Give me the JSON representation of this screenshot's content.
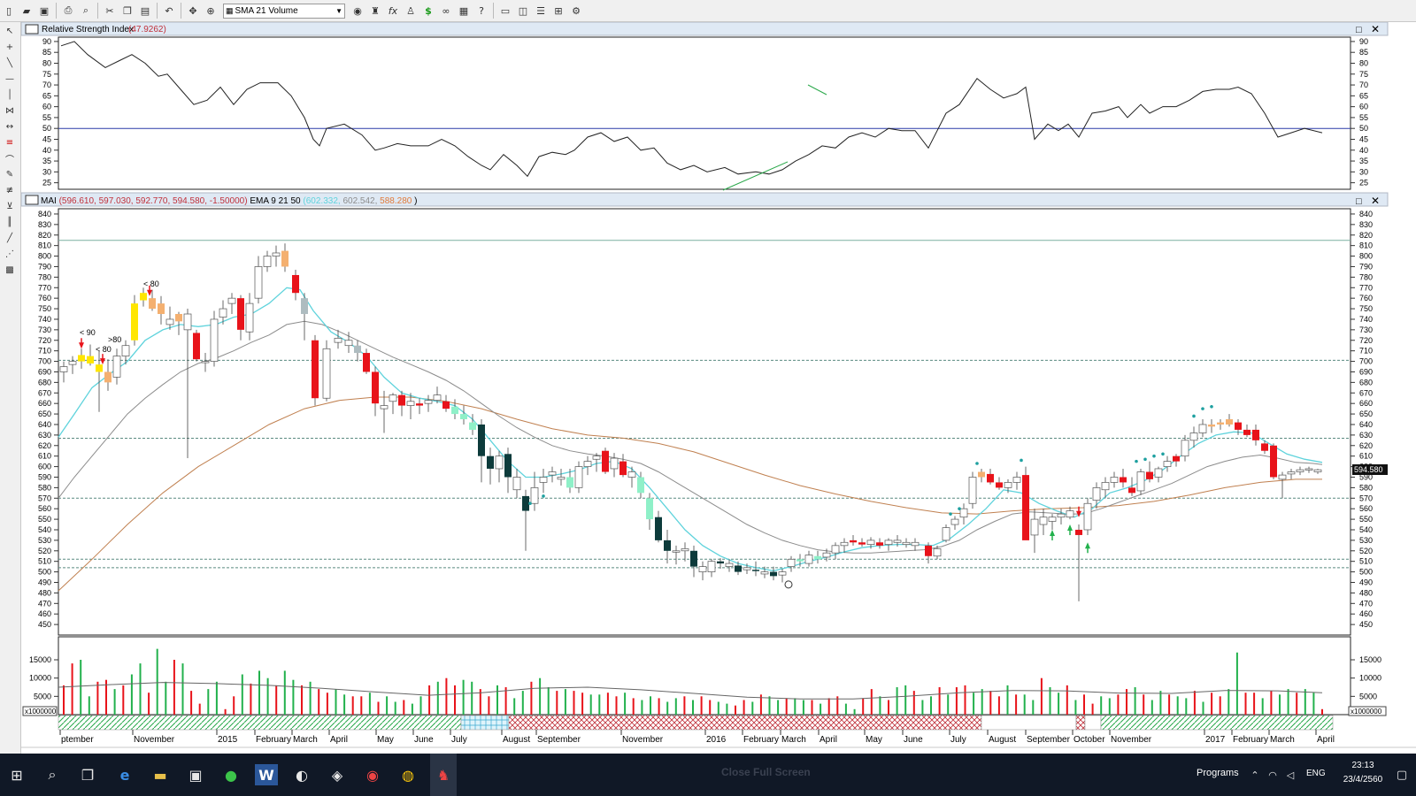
{
  "toolbar": {
    "indicator_select": "SMA 21 Volume",
    "icons": [
      "new-file-icon",
      "open-folder-icon",
      "save-icon",
      "print-icon",
      "print-preview-icon",
      "cut-icon",
      "copy-icon",
      "paste-icon",
      "undo-icon",
      "pan-icon",
      "zoom-icon",
      "indicator-select",
      "indicator-icon",
      "expert-icon",
      "formula-icon",
      "scan-icon",
      "dollar-icon",
      "binoculars-icon",
      "calculator-icon",
      "help-icon",
      "window-icon",
      "layout-icon",
      "tile-horizontal-icon",
      "tile-grid-icon",
      "settings-icon"
    ]
  },
  "left_tools": [
    "pointer-icon",
    "crosshair-icon",
    "line-icon",
    "horizontal-line-icon",
    "vertical-line-icon",
    "fibonacci-icon",
    "scroll-icon",
    "color-icon",
    "arc-icon",
    "pen-icon",
    "channel-icon",
    "gann-icon",
    "cycle-icon",
    "trendline-icon",
    "fan-icon",
    "pattern-icon"
  ],
  "rsi_panel": {
    "title": "Relative Strength Index",
    "value": "(47.9262)",
    "y_ticks": [
      "90",
      "85",
      "80",
      "75",
      "70",
      "65",
      "60",
      "55",
      "50",
      "45",
      "40",
      "35",
      "30",
      "25"
    ],
    "midline": 50
  },
  "price_panel": {
    "symbol": "MAI",
    "ohlc_open": "(596.610,",
    "ohlc_high": "597.030,",
    "ohlc_low": "592.770,",
    "ohlc_close": "594.580,",
    "ohlc_change": "-1.50000)",
    "ema_label": "EMA 9 21 50",
    "ema9": "(602.332,",
    "ema21": "602.542,",
    "ema50": "588.280",
    "ema_close": ")",
    "last_price": "594.580",
    "y_ticks": [
      "840",
      "830",
      "820",
      "810",
      "800",
      "790",
      "780",
      "770",
      "760",
      "750",
      "740",
      "730",
      "720",
      "710",
      "700",
      "690",
      "680",
      "670",
      "660",
      "650",
      "640",
      "630",
      "620",
      "610",
      "600",
      "590",
      "580",
      "570",
      "560",
      "550",
      "540",
      "530",
      "520",
      "510",
      "500",
      "490",
      "480",
      "470",
      "460",
      "450"
    ],
    "annotations": [
      "< 90",
      "< 80",
      ">80",
      "< 80"
    ],
    "colors": {
      "ema9": "#5fd3dc",
      "ema21": "#8c8c8c",
      "ema50": "#c08050",
      "down": "#e8131a",
      "up": "#ffffff",
      "strong_down": "#0d3b3b",
      "strong_up": "#8ff0c8",
      "yellow": "#ffe600",
      "orange": "#f4b070"
    }
  },
  "volume_panel": {
    "y_ticks": [
      "15000",
      "10000",
      "5000"
    ],
    "multiplier": "x1000000"
  },
  "x_axis_labels": [
    "ptember",
    "November",
    "2015",
    "February",
    "March",
    "April",
    "May",
    "June",
    "July",
    "August",
    "September",
    "November",
    "2016",
    "February",
    "March",
    "April",
    "May",
    "June",
    "July",
    "August",
    "September",
    "October",
    "November",
    "2017",
    "February",
    "March",
    "April"
  ],
  "taskbar": {
    "programs": "Programs",
    "language": "ENG",
    "time": "23:13",
    "date": "23/4/2560",
    "ghost_text": "Close Full Screen"
  }
}
